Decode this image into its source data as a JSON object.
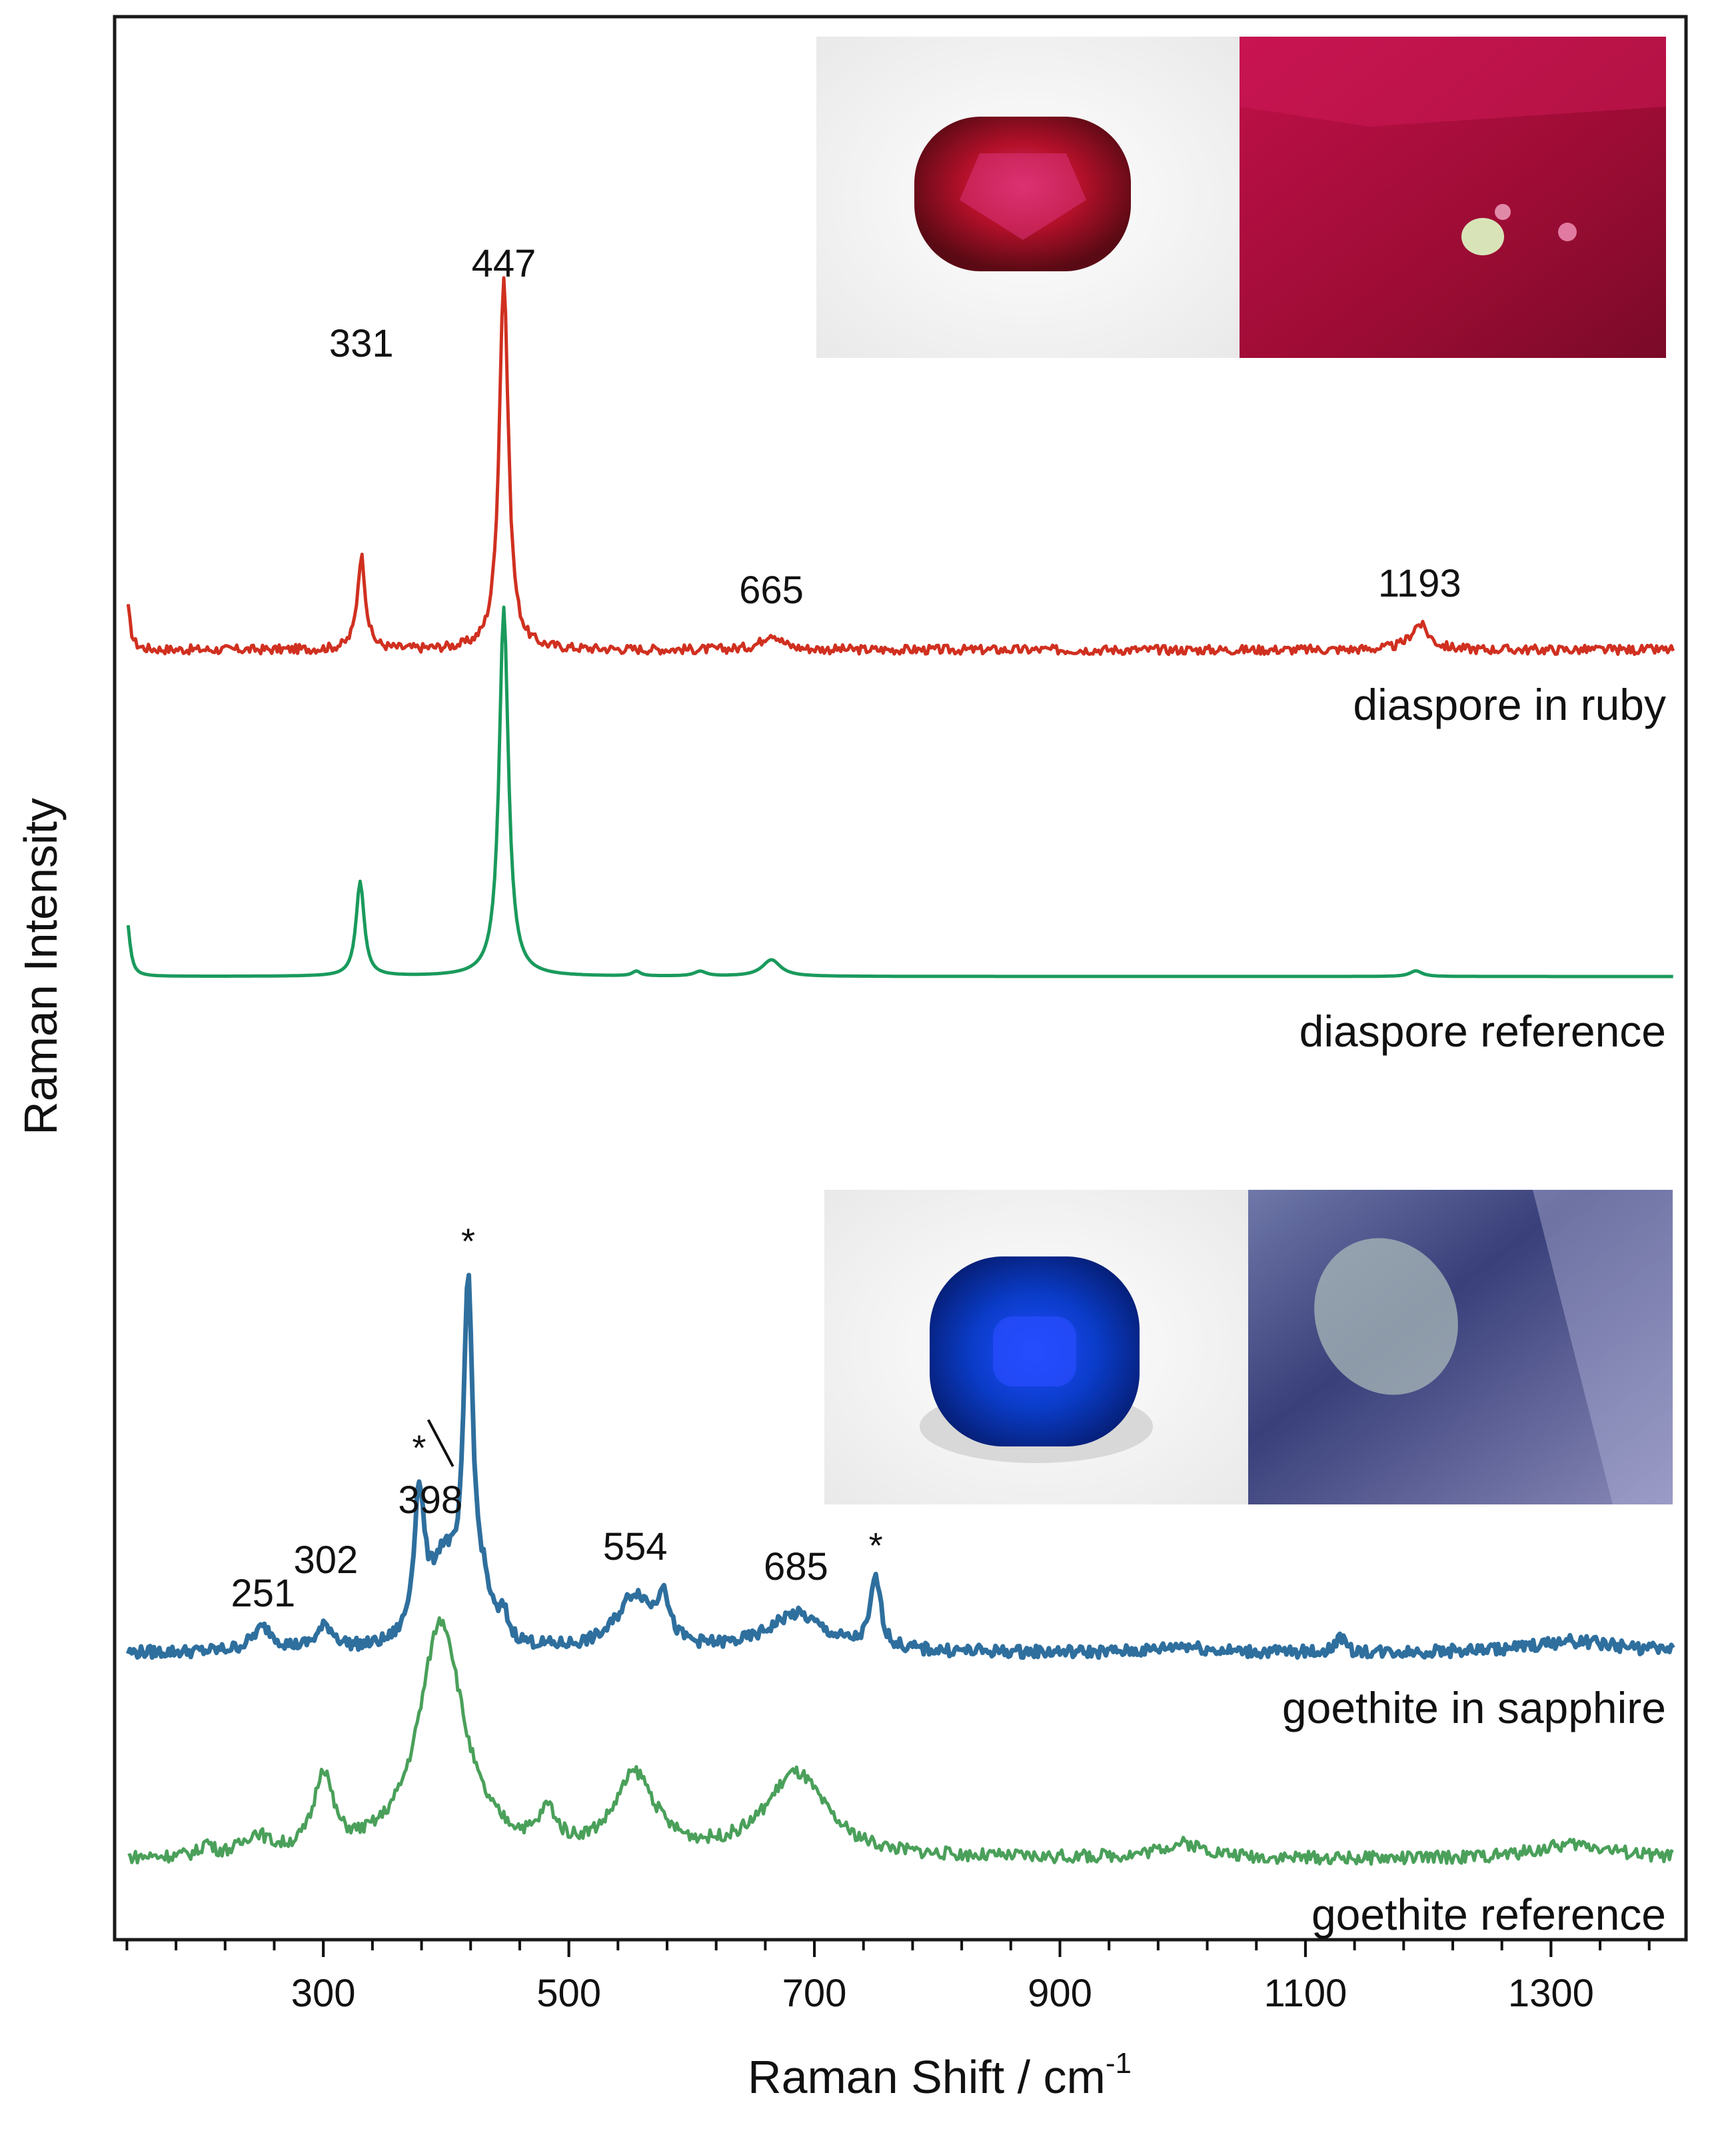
{
  "chart_data": {
    "type": "line",
    "xlabel": "Raman Shift / cm",
    "xlabel_superscript": "-1",
    "ylabel": "Raman Intensity",
    "xlim": [
      130,
      1410
    ],
    "x_ticks": [
      300,
      500,
      700,
      900,
      1100,
      1300
    ],
    "x_ticks_minor_step": 40,
    "y_ticks": "none",
    "grid": false,
    "legend": "none",
    "series": [
      {
        "name": "diaspore in ruby",
        "color": "#d03020",
        "peaks": [
          {
            "x": 140,
            "h": 0.1,
            "w": 3
          },
          {
            "x": 331,
            "h": 0.2,
            "w": 4
          },
          {
            "x": 447,
            "h": 0.8,
            "w": 4.5
          },
          {
            "x": 665,
            "h": 0.035,
            "w": 9
          },
          {
            "x": 1193,
            "h": 0.055,
            "w": 9
          }
        ],
        "noise": 0.01,
        "labels": [
          {
            "x": 331,
            "text": "331"
          },
          {
            "x": 447,
            "text": "447"
          },
          {
            "x": 665,
            "text": "665"
          },
          {
            "x": 1193,
            "text": "1193"
          }
        ]
      },
      {
        "name": "diaspore reference",
        "color": "#1a9a5c",
        "peaks": [
          {
            "x": 140,
            "h": 0.12,
            "w": 3
          },
          {
            "x": 330,
            "h": 0.2,
            "w": 4
          },
          {
            "x": 447,
            "h": 0.78,
            "w": 4.5
          },
          {
            "x": 555,
            "h": 0.01,
            "w": 4
          },
          {
            "x": 607,
            "h": 0.01,
            "w": 6
          },
          {
            "x": 665,
            "h": 0.035,
            "w": 9
          },
          {
            "x": 1190,
            "h": 0.012,
            "w": 6
          }
        ],
        "noise": 0.0,
        "labels": []
      },
      {
        "name": "goethite in sapphire",
        "color": "#2e6f9e",
        "peaks": [
          {
            "x": 251,
            "h": 0.05,
            "w": 11
          },
          {
            "x": 302,
            "h": 0.05,
            "w": 9
          },
          {
            "x": 378,
            "h": 0.3,
            "w": 5
          },
          {
            "x": 398,
            "h": 0.18,
            "w": 14
          },
          {
            "x": 418,
            "h": 0.72,
            "w": 4.5
          },
          {
            "x": 430,
            "h": 0.09,
            "w": 8
          },
          {
            "x": 447,
            "h": 0.05,
            "w": 4
          },
          {
            "x": 554,
            "h": 0.12,
            "w": 18
          },
          {
            "x": 577,
            "h": 0.1,
            "w": 5
          },
          {
            "x": 685,
            "h": 0.08,
            "w": 28
          },
          {
            "x": 750,
            "h": 0.15,
            "w": 5
          },
          {
            "x": 1000,
            "h": 0.015,
            "w": 20
          },
          {
            "x": 1128,
            "h": 0.035,
            "w": 4
          },
          {
            "x": 1320,
            "h": 0.025,
            "w": 45
          }
        ],
        "noise": 0.013,
        "labels": [
          {
            "x": 251,
            "text": "251"
          },
          {
            "x": 302,
            "text": "302"
          },
          {
            "x": 398,
            "text": "398"
          },
          {
            "x": 554,
            "text": "554"
          },
          {
            "x": 685,
            "text": "685"
          }
        ],
        "starred_peaks": [
          378,
          418,
          750
        ]
      },
      {
        "name": "goethite reference",
        "color": "#4aa05a",
        "peaks": [
          {
            "x": 205,
            "h": 0.025,
            "w": 5
          },
          {
            "x": 245,
            "h": 0.04,
            "w": 12
          },
          {
            "x": 300,
            "h": 0.16,
            "w": 9
          },
          {
            "x": 396,
            "h": 0.48,
            "w": 22
          },
          {
            "x": 483,
            "h": 0.07,
            "w": 8
          },
          {
            "x": 554,
            "h": 0.16,
            "w": 20
          },
          {
            "x": 685,
            "h": 0.17,
            "w": 30
          },
          {
            "x": 1000,
            "h": 0.03,
            "w": 25
          },
          {
            "x": 1320,
            "h": 0.03,
            "w": 40
          }
        ],
        "noise": 0.013,
        "labels": []
      }
    ],
    "annotation_star": "*"
  }
}
